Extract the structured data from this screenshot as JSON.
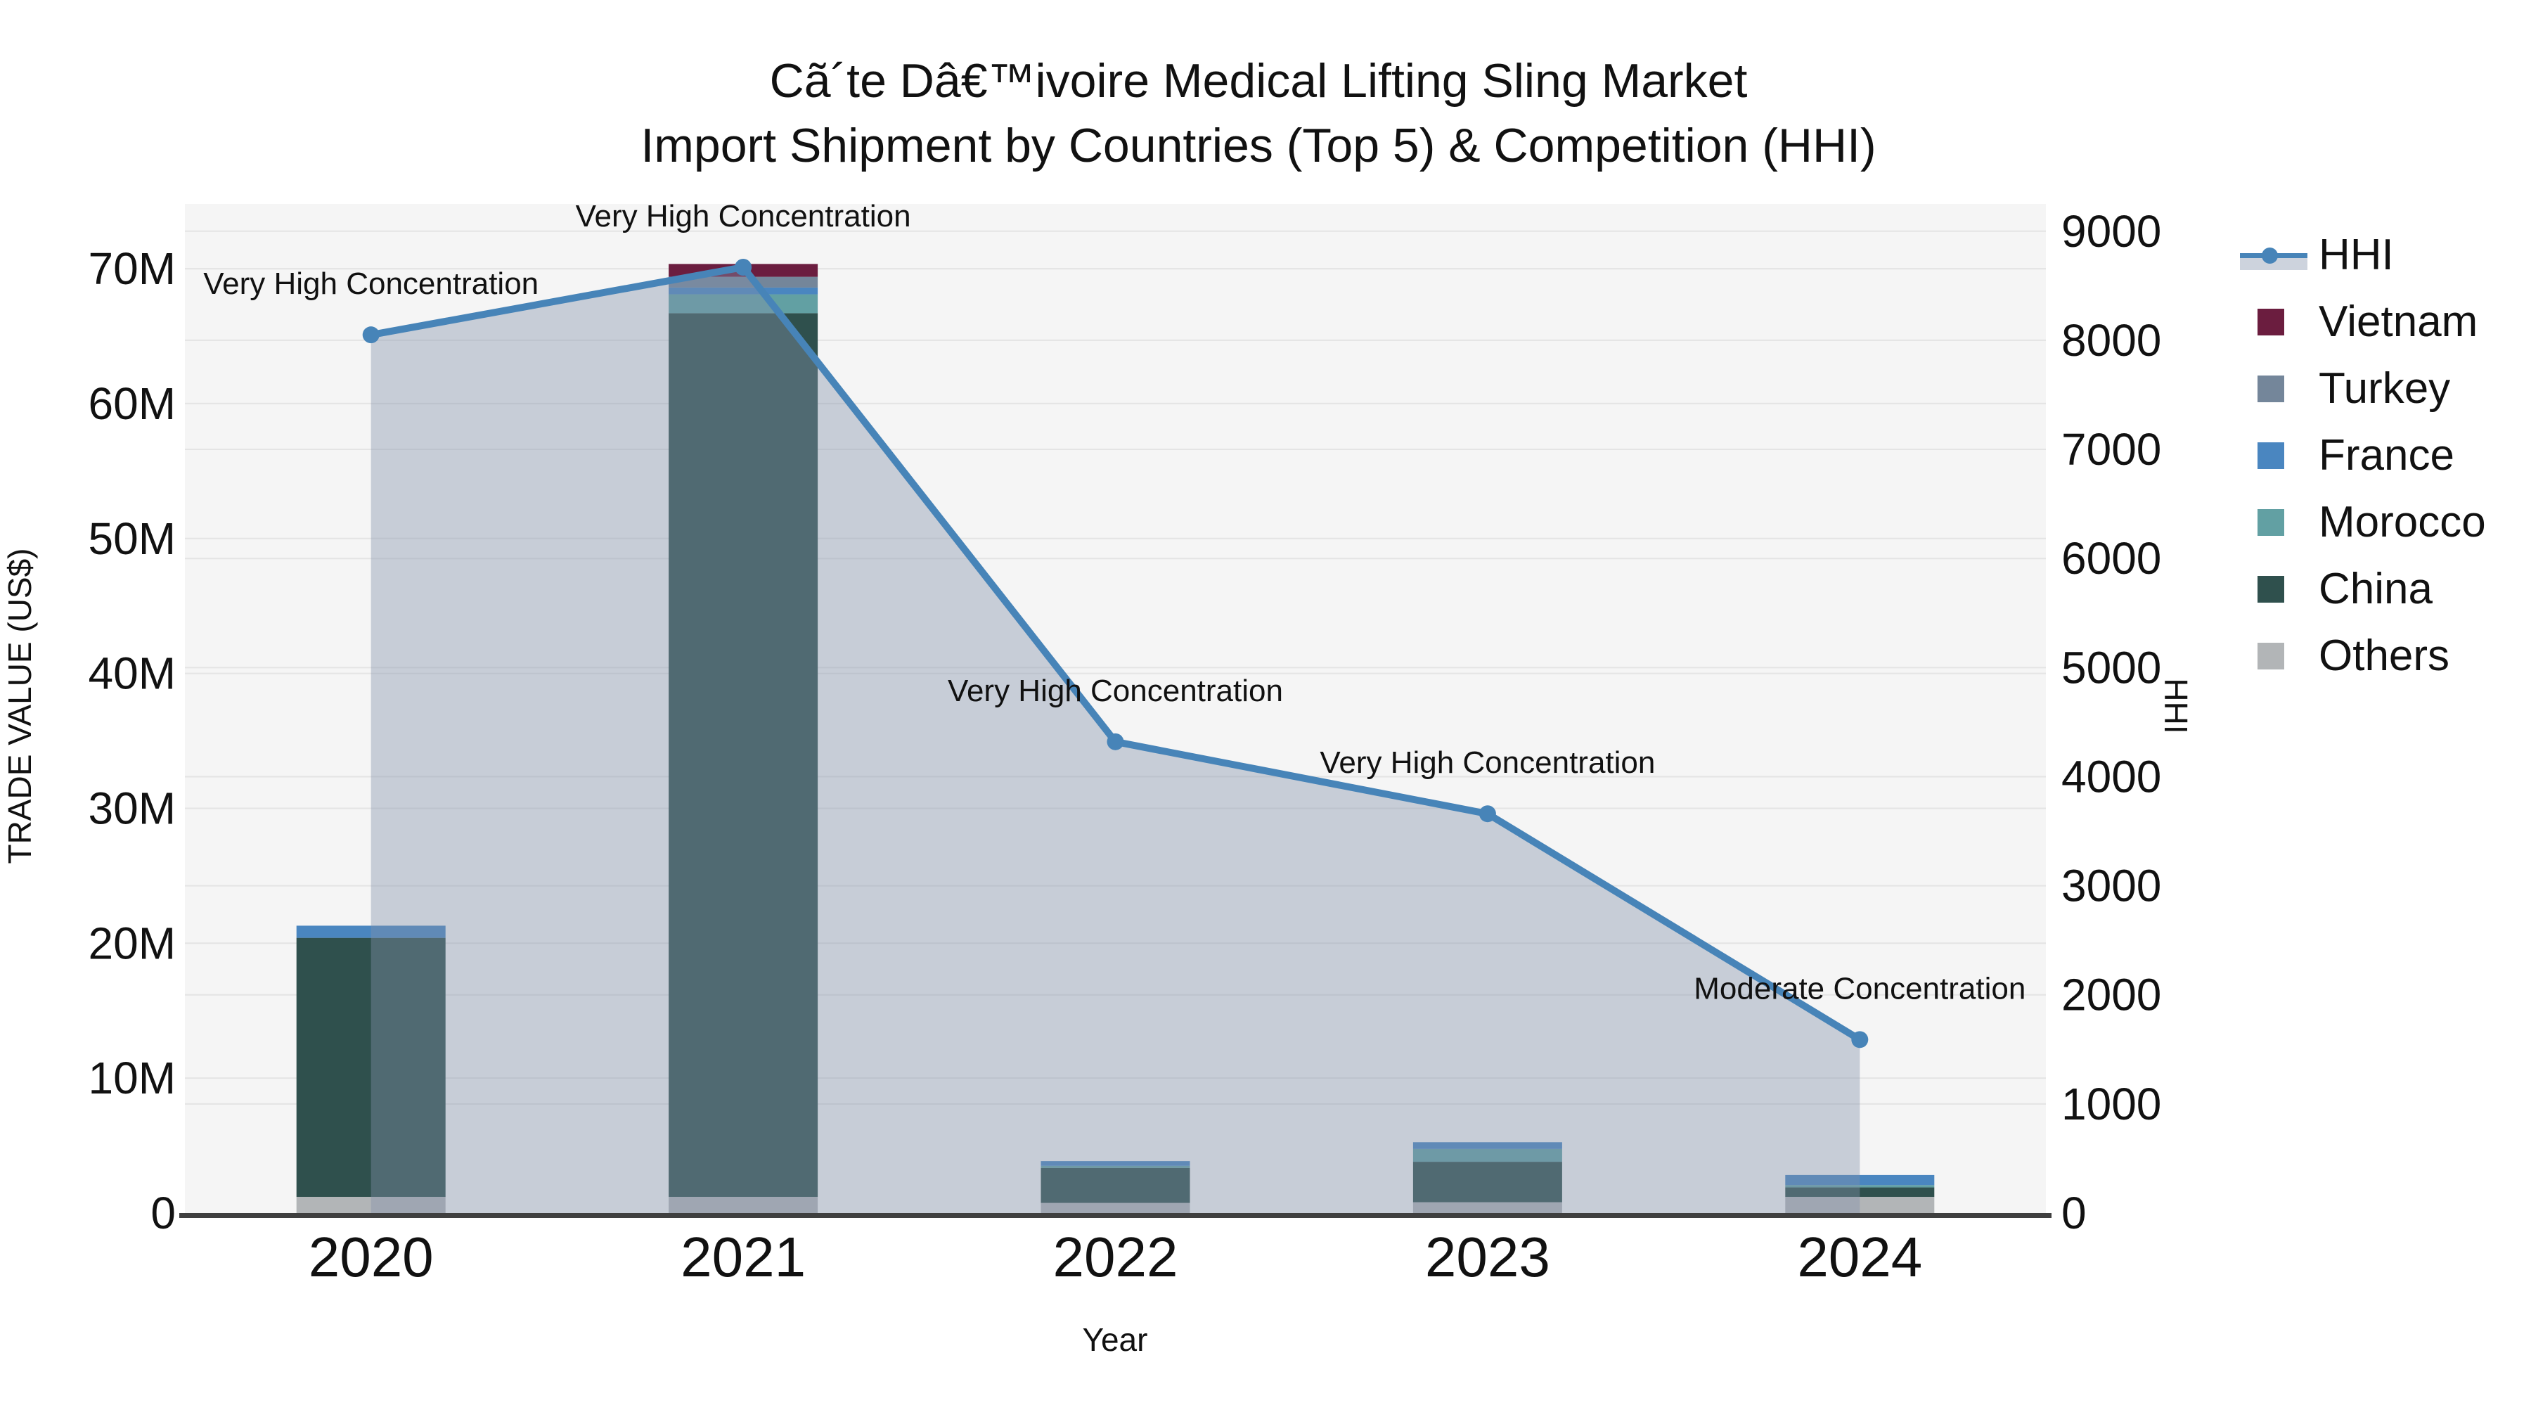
{
  "title": {
    "line1": "Cã´te Dâ€™ivoire Medical Lifting Sling Market",
    "line2": "Import Shipment by Countries (Top 5) & Competition (HHI)"
  },
  "axes": {
    "left": {
      "title": "TRADE VALUE (US$)",
      "ticks": [
        {
          "value": 0,
          "label": "0"
        },
        {
          "value": 10,
          "label": "10M"
        },
        {
          "value": 20,
          "label": "20M"
        },
        {
          "value": 30,
          "label": "30M"
        },
        {
          "value": 40,
          "label": "40M"
        },
        {
          "value": 50,
          "label": "50M"
        },
        {
          "value": 60,
          "label": "60M"
        },
        {
          "value": 70,
          "label": "70M"
        }
      ]
    },
    "right": {
      "title": "HHI",
      "ticks": [
        {
          "value": 0,
          "label": "0"
        },
        {
          "value": 1000,
          "label": "1000"
        },
        {
          "value": 2000,
          "label": "2000"
        },
        {
          "value": 3000,
          "label": "3000"
        },
        {
          "value": 4000,
          "label": "4000"
        },
        {
          "value": 5000,
          "label": "5000"
        },
        {
          "value": 6000,
          "label": "6000"
        },
        {
          "value": 7000,
          "label": "7000"
        },
        {
          "value": 8000,
          "label": "8000"
        },
        {
          "value": 9000,
          "label": "9000"
        }
      ]
    },
    "x": {
      "title": "Year"
    }
  },
  "legend": {
    "items": [
      {
        "label": "HHI",
        "type": "line",
        "color": "#4784b8"
      },
      {
        "label": "Vietnam",
        "type": "swatch",
        "color": "#6b1d3f"
      },
      {
        "label": "Turkey",
        "type": "swatch",
        "color": "#74869a"
      },
      {
        "label": "France",
        "type": "swatch",
        "color": "#4a86c0"
      },
      {
        "label": "Morocco",
        "type": "swatch",
        "color": "#62a0a3"
      },
      {
        "label": "China",
        "type": "swatch",
        "color": "#2f504d"
      },
      {
        "label": "Others",
        "type": "swatch",
        "color": "#b2b5b7"
      }
    ]
  },
  "chart_data": {
    "type": "bar",
    "subtype": "stacked-bars-with-line",
    "title": "Cã´te Dâ€™ivoire Medical Lifting Sling Market — Import Shipment by Countries (Top 5) & Competition (HHI)",
    "xlabel": "Year",
    "ylabel_left": "TRADE VALUE (US$)",
    "ylabel_right": "HHI",
    "categories": [
      "2020",
      "2021",
      "2022",
      "2023",
      "2024"
    ],
    "bar_units": "million US$",
    "series": [
      {
        "name": "Vietnam",
        "color": "#6b1d3f",
        "values": [
          0,
          0.95,
          0,
          0,
          0
        ]
      },
      {
        "name": "Turkey",
        "color": "#74869a",
        "values": [
          0,
          0.8,
          0,
          0,
          0
        ]
      },
      {
        "name": "France",
        "color": "#4a86c0",
        "values": [
          0.9,
          0.5,
          0.35,
          0.5,
          0.75
        ]
      },
      {
        "name": "Morocco",
        "color": "#62a0a3",
        "values": [
          0,
          1.4,
          0.15,
          0.95,
          0.17
        ]
      },
      {
        "name": "China",
        "color": "#2f504d",
        "values": [
          19.2,
          65.5,
          2.6,
          3.0,
          0.7
        ]
      },
      {
        "name": "Others",
        "color": "#b2b5b7",
        "values": [
          1.2,
          1.2,
          0.75,
          0.8,
          1.2
        ]
      }
    ],
    "bar_totals": [
      21.3,
      70.35,
      3.85,
      5.25,
      2.82
    ],
    "line_series": {
      "name": "HHI",
      "axis": "right",
      "color": "#4784b8",
      "area_fill": "rgba(130,145,170,0.40)",
      "values": [
        8050,
        8670,
        4320,
        3660,
        1590
      ]
    },
    "annotations": [
      {
        "x": "2020",
        "text": "Very High Concentration"
      },
      {
        "x": "2021",
        "text": "Very High Concentration"
      },
      {
        "x": "2022",
        "text": "Very High Concentration"
      },
      {
        "x": "2023",
        "text": "Very High Concentration"
      },
      {
        "x": "2024",
        "text": "Moderate Concentration"
      }
    ],
    "ylim_left": [
      0,
      74.8
    ],
    "ylim_right": [
      0,
      9250
    ],
    "grid": true,
    "legend_position": "right",
    "plot_bg": "#f5f5f5",
    "grid_color": "#e4e4e4",
    "axis_line_color": "#3f3f3f"
  }
}
